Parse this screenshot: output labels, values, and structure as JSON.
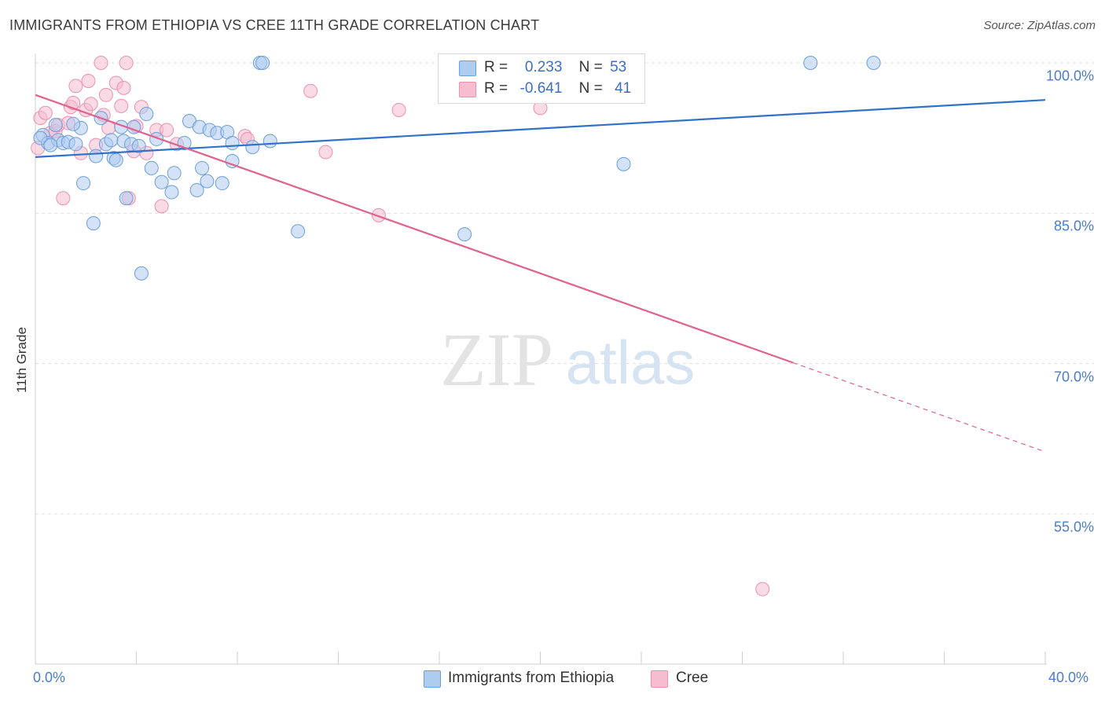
{
  "title": "IMMIGRANTS FROM ETHIOPIA VS CREE 11TH GRADE CORRELATION CHART",
  "source": "Source: ZipAtlas.com",
  "watermark": {
    "zip": "ZIP",
    "atlas": "atlas"
  },
  "legend": {
    "rows": [
      {
        "r_label": "R =",
        "r_value": "0.233",
        "n_label": "N =",
        "n_value": "53"
      },
      {
        "r_label": "R =",
        "r_value": "-0.641",
        "n_label": "N =",
        "n_value": "41"
      }
    ]
  },
  "bottom_legend": [
    "Immigrants from Ethiopia",
    "Cree"
  ],
  "colors": {
    "blue_fill": "#aecbf0",
    "blue_stroke": "#6a9fdc",
    "blue_line": "#2f72c8",
    "pink_fill": "#f6bcd0",
    "pink_stroke": "#ee8fb0",
    "pink_line": "#e0628f",
    "tick_text": "#4a7cc9",
    "grid": "#dddddd"
  },
  "chart_data": {
    "type": "scatter",
    "title": "IMMIGRANTS FROM ETHIOPIA VS CREE 11TH GRADE CORRELATION CHART",
    "xlabel": "",
    "ylabel": "11th Grade",
    "xlim": [
      0,
      40
    ],
    "ylim": [
      40,
      101.5
    ],
    "x_tick_labels": [
      "0.0%",
      "40.0%"
    ],
    "y_ticks": [
      100,
      85,
      70,
      55
    ],
    "y_tick_labels": [
      "100.0%",
      "85.0%",
      "70.0%",
      "55.0%"
    ],
    "series": [
      {
        "name": "Immigrants from Ethiopia",
        "R": 0.233,
        "N": 53,
        "trend": {
          "x0": 0,
          "y0": 90.6,
          "x1": 40,
          "y1": 96.3
        },
        "points": [
          [
            0.3,
            92.8
          ],
          [
            0.5,
            92.0
          ],
          [
            0.8,
            93.8
          ],
          [
            0.9,
            92.3
          ],
          [
            1.1,
            92.0
          ],
          [
            1.3,
            92.1
          ],
          [
            1.6,
            91.9
          ],
          [
            1.8,
            93.5
          ],
          [
            1.9,
            88.0
          ],
          [
            2.3,
            84.0
          ],
          [
            2.4,
            90.7
          ],
          [
            2.6,
            94.5
          ],
          [
            2.8,
            91.9
          ],
          [
            3.0,
            92.3
          ],
          [
            3.1,
            90.5
          ],
          [
            3.2,
            90.3
          ],
          [
            3.4,
            93.6
          ],
          [
            3.5,
            92.2
          ],
          [
            3.6,
            86.5
          ],
          [
            3.8,
            91.9
          ],
          [
            3.9,
            93.6
          ],
          [
            4.1,
            91.7
          ],
          [
            4.2,
            79.0
          ],
          [
            4.4,
            94.9
          ],
          [
            4.6,
            89.5
          ],
          [
            4.8,
            92.4
          ],
          [
            5.0,
            88.1
          ],
          [
            5.4,
            87.1
          ],
          [
            5.5,
            89.0
          ],
          [
            5.9,
            92.0
          ],
          [
            6.1,
            94.2
          ],
          [
            6.4,
            87.3
          ],
          [
            6.5,
            93.6
          ],
          [
            6.6,
            89.5
          ],
          [
            6.8,
            88.2
          ],
          [
            6.9,
            93.3
          ],
          [
            7.2,
            93.0
          ],
          [
            7.4,
            88.0
          ],
          [
            7.6,
            93.1
          ],
          [
            7.8,
            90.2
          ],
          [
            7.8,
            92.0
          ],
          [
            8.6,
            91.6
          ],
          [
            8.9,
            100.0
          ],
          [
            9.0,
            100.0
          ],
          [
            9.3,
            92.2
          ],
          [
            10.4,
            83.2
          ],
          [
            17.0,
            82.9
          ],
          [
            23.3,
            89.9
          ],
          [
            30.7,
            100.0
          ],
          [
            33.2,
            100.0
          ],
          [
            0.2,
            92.5
          ],
          [
            1.5,
            93.9
          ],
          [
            0.6,
            91.8
          ]
        ]
      },
      {
        "name": "Cree",
        "R": -0.641,
        "N": 41,
        "trend": {
          "x0": 0,
          "y0": 96.8,
          "x1": 30.0,
          "y1": 70.1,
          "dash_to_x": 40,
          "dash_to_y": 61.2
        },
        "points": [
          [
            0.1,
            91.5
          ],
          [
            0.2,
            94.5
          ],
          [
            0.4,
            95.0
          ],
          [
            0.6,
            93.0
          ],
          [
            0.8,
            93.2
          ],
          [
            0.9,
            93.8
          ],
          [
            1.1,
            86.5
          ],
          [
            1.3,
            94.0
          ],
          [
            1.4,
            95.6
          ],
          [
            1.5,
            96.0
          ],
          [
            1.6,
            97.7
          ],
          [
            1.8,
            91.0
          ],
          [
            2.0,
            95.3
          ],
          [
            2.1,
            98.2
          ],
          [
            2.2,
            95.9
          ],
          [
            2.4,
            91.8
          ],
          [
            2.6,
            100.0
          ],
          [
            2.7,
            94.8
          ],
          [
            2.8,
            96.8
          ],
          [
            2.9,
            93.5
          ],
          [
            3.2,
            98.0
          ],
          [
            3.4,
            95.7
          ],
          [
            3.5,
            97.5
          ],
          [
            3.6,
            100.0
          ],
          [
            3.7,
            86.5
          ],
          [
            3.9,
            91.2
          ],
          [
            4.0,
            93.7
          ],
          [
            4.2,
            95.6
          ],
          [
            4.4,
            91.0
          ],
          [
            4.8,
            93.3
          ],
          [
            5.0,
            85.7
          ],
          [
            5.2,
            93.3
          ],
          [
            5.6,
            91.9
          ],
          [
            8.3,
            92.7
          ],
          [
            8.4,
            92.4
          ],
          [
            10.9,
            97.2
          ],
          [
            11.5,
            91.1
          ],
          [
            13.6,
            84.8
          ],
          [
            14.4,
            95.3
          ],
          [
            20.0,
            95.5
          ],
          [
            28.8,
            47.5
          ]
        ]
      }
    ]
  }
}
